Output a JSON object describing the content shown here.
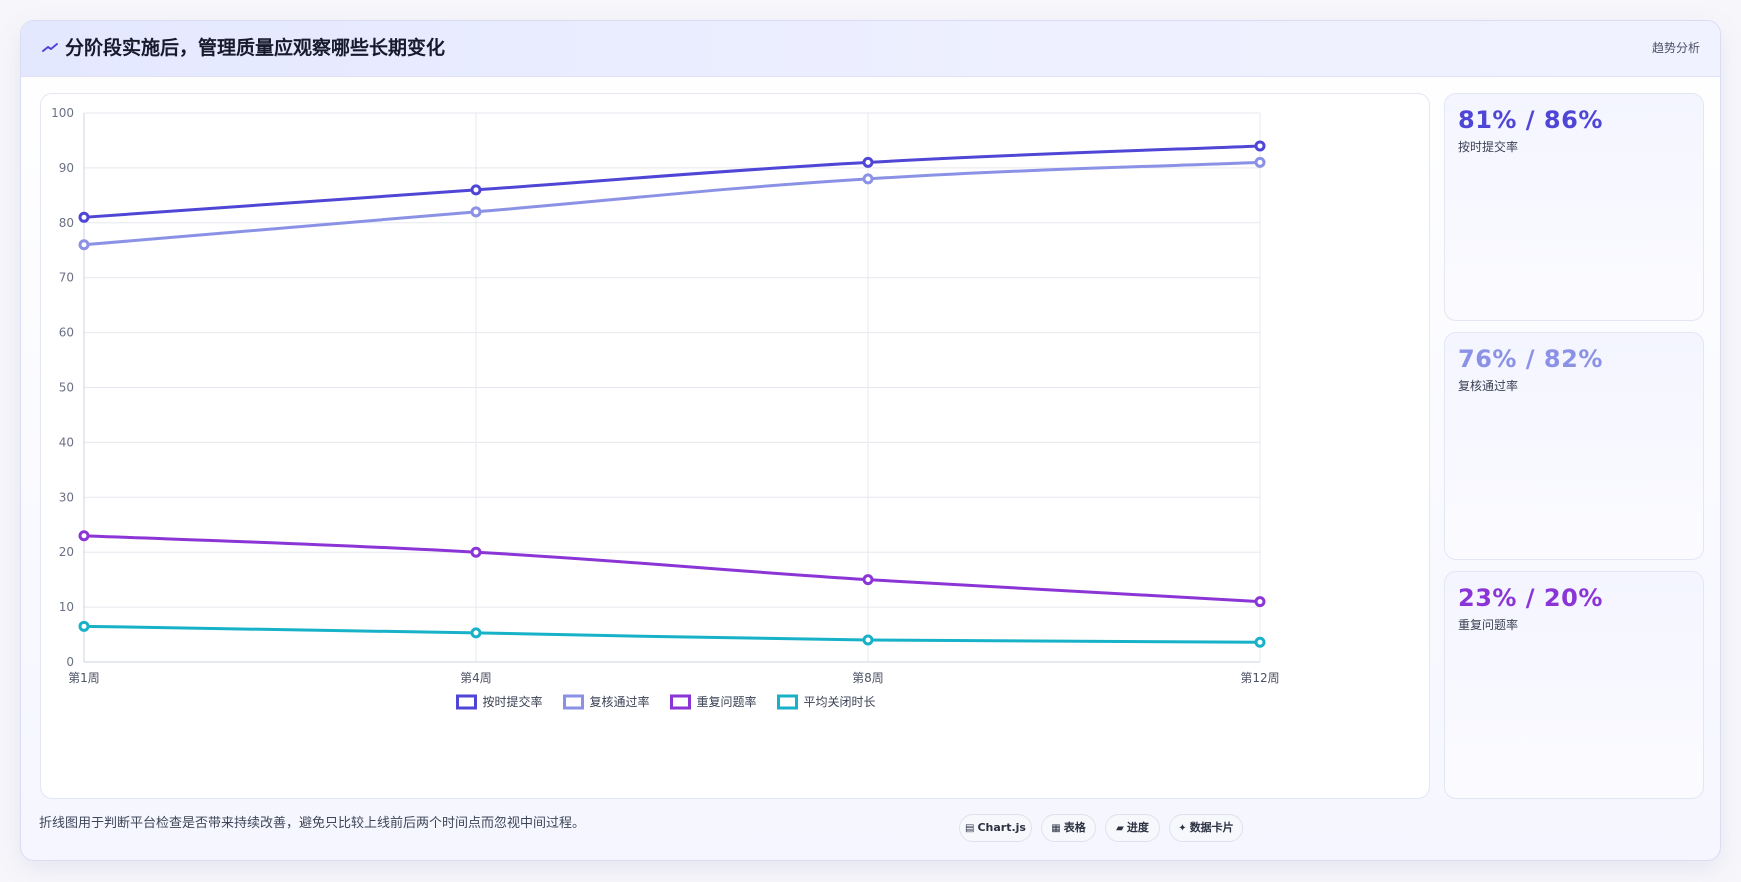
{
  "header": {
    "title": "分阶段实施后，管理质量应观察哪些长期变化",
    "right_label": "趋势分析"
  },
  "chart_data": {
    "type": "line",
    "categories": [
      "第1周",
      "第4周",
      "第8周",
      "第12周"
    ],
    "ylim": [
      0,
      100
    ],
    "yticks": [
      0,
      10,
      20,
      30,
      40,
      50,
      60,
      70,
      80,
      90,
      100
    ],
    "grid": true,
    "legend_position": "bottom",
    "series": [
      {
        "name": "按时提交率",
        "color": "#4f46d6",
        "values": [
          81,
          86,
          91,
          94
        ]
      },
      {
        "name": "复核通过率",
        "color": "#8b92e6",
        "values": [
          76,
          82,
          88,
          91
        ]
      },
      {
        "name": "重复问题率",
        "color": "#8b35d6",
        "values": [
          23,
          20,
          15,
          11
        ]
      },
      {
        "name": "平均关闭时长",
        "color": "#17b2c8",
        "values": [
          6.5,
          5.3,
          4.0,
          3.6
        ]
      }
    ]
  },
  "kpis": [
    {
      "value": "81% / 86%",
      "label": "按时提交率",
      "color": "#4f46d6"
    },
    {
      "value": "76% / 82%",
      "label": "复核通过率",
      "color": "#8b92e6"
    },
    {
      "value": "23% / 20%",
      "label": "重复问题率",
      "color": "#8b35d6"
    }
  ],
  "footer": {
    "note": "折线图用于判断平台检查是否带来持续改善，避免只比较上线前后两个时间点而忽视中间过程。",
    "chips": [
      {
        "icon": "chart-icon",
        "glyph": "▤",
        "label": "Chart.js"
      },
      {
        "icon": "table-icon",
        "glyph": "▦",
        "label": "表格"
      },
      {
        "icon": "progress-icon",
        "glyph": "▰",
        "label": "进度"
      },
      {
        "icon": "card-icon",
        "glyph": "✦",
        "label": "数据卡片"
      }
    ]
  }
}
